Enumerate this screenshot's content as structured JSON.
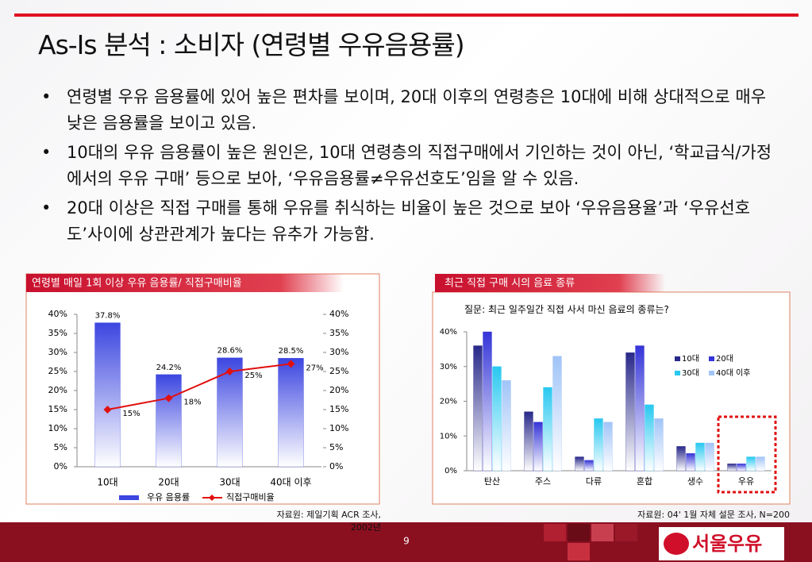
{
  "title": "As-Is 분석 : 소비자 (연령별 우유음용률)",
  "bullets": [
    "연령별 우유 음용률에 있어 높은 편차를 보이며, 20대 이후의 연령층은 10대에 비해 상대적으로 매우 낮은 음용률을 보이고 있음.",
    "10대의 우유 음용률이 높은 원인은, 10대 연령층의 직접구매에서 기인하는 것이 아닌, ‘학교급식/가정에서의 우유 구매’ 등으로 보아, ‘우유음용률≠우유선호도’임을 알 수 있음.",
    "20대 이상은 직접 구매를 통해 우유를 취식하는 비율이 높은 것으로 보아 ‘우유음용율’과 ‘우유선호도’사이에 상관관계가 높다는 유추가 가능함."
  ],
  "chart_data": [
    {
      "type": "bar",
      "title": "연령별 매일 1회 이상 우유 음용률/ 직접구매비율",
      "categories": [
        "10대",
        "20대",
        "30대",
        "40대 이후"
      ],
      "series": [
        {
          "name": "우유 음용률",
          "color": "#3c46e0",
          "values": [
            37.8,
            24.2,
            28.6,
            28.5
          ],
          "value_labels": [
            "37.8%",
            "24.2%",
            "28.6%",
            "28.5%"
          ]
        },
        {
          "name": "직접구매비율",
          "color": "#e01010",
          "type": "line",
          "axis": "y2",
          "values": [
            15,
            18,
            25,
            27
          ],
          "value_labels": [
            "15%",
            "18%",
            "25%",
            "27%"
          ]
        }
      ],
      "ylim": [
        0,
        40
      ],
      "yticks": [
        {
          "value": 0,
          "label": "0%"
        },
        {
          "value": 5,
          "label": "5%"
        },
        {
          "value": 10,
          "label": "10%"
        },
        {
          "value": 15,
          "label": "15%"
        },
        {
          "value": 20,
          "label": "20%"
        },
        {
          "value": 25,
          "label": "25%"
        },
        {
          "value": 30,
          "label": "30%"
        },
        {
          "value": 35,
          "label": "35%"
        },
        {
          "value": 40,
          "label": "40%"
        }
      ],
      "y2lim": [
        0,
        40
      ],
      "y2ticks": [
        {
          "value": 0,
          "label": "0%"
        },
        {
          "value": 5,
          "label": "5%"
        },
        {
          "value": 10,
          "label": "10%"
        },
        {
          "value": 15,
          "label": "15%"
        },
        {
          "value": 20,
          "label": "20%"
        },
        {
          "value": 25,
          "label": "25%"
        },
        {
          "value": 30,
          "label": "30%"
        },
        {
          "value": 35,
          "label": "35%"
        },
        {
          "value": 40,
          "label": "40%"
        }
      ],
      "source": "자료원: 제일기획 ACR 조사, 2002년"
    },
    {
      "type": "bar",
      "title": "최근 직접 구매 시의 음료 종류",
      "subtitle": "질문: 최근 일주일간 직접 사서 마신 음료의 종류는?",
      "categories": [
        "탄산",
        "주스",
        "다류",
        "혼합",
        "생수",
        "우유"
      ],
      "series": [
        {
          "name": "10대",
          "color": "#28288a",
          "values": [
            36,
            17,
            4,
            34,
            7,
            2
          ]
        },
        {
          "name": "20대",
          "color": "#3434d8",
          "values": [
            40,
            14,
            3,
            36,
            5,
            2
          ]
        },
        {
          "name": "30대",
          "color": "#28c8f0",
          "values": [
            30,
            24,
            15,
            19,
            8,
            4
          ]
        },
        {
          "name": "40대 이후",
          "color": "#a0c4f8",
          "values": [
            26,
            33,
            14,
            15,
            8,
            4
          ]
        }
      ],
      "ylim": [
        0,
        40
      ],
      "yticks": [
        {
          "value": 0,
          "label": "0%"
        },
        {
          "value": 10,
          "label": "10%"
        },
        {
          "value": 20,
          "label": "20%"
        },
        {
          "value": 30,
          "label": "30%"
        },
        {
          "value": 40,
          "label": "40%"
        }
      ],
      "source": "자료원: 04' 1월 자체 설문 조사, N=200"
    }
  ],
  "page": "9",
  "logo": "서울우유"
}
